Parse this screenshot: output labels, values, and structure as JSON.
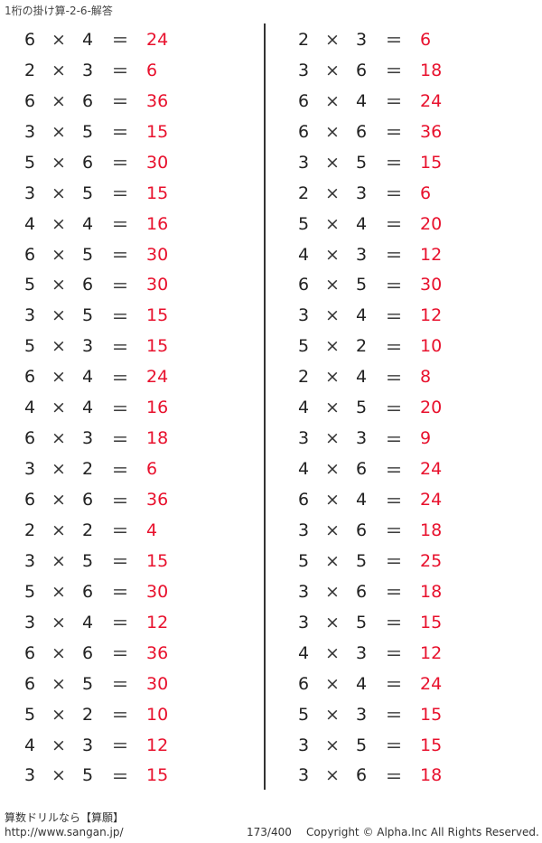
{
  "title": "1桁の掛け算-2-6-解答",
  "operator": "×",
  "equals": "＝",
  "answer_color": "#e8112d",
  "left": [
    [
      "6",
      "4",
      "24"
    ],
    [
      "2",
      "3",
      "6"
    ],
    [
      "6",
      "6",
      "36"
    ],
    [
      "3",
      "5",
      "15"
    ],
    [
      "5",
      "6",
      "30"
    ],
    [
      "3",
      "5",
      "15"
    ],
    [
      "4",
      "4",
      "16"
    ],
    [
      "6",
      "5",
      "30"
    ],
    [
      "5",
      "6",
      "30"
    ],
    [
      "3",
      "5",
      "15"
    ],
    [
      "5",
      "3",
      "15"
    ],
    [
      "6",
      "4",
      "24"
    ],
    [
      "4",
      "4",
      "16"
    ],
    [
      "6",
      "3",
      "18"
    ],
    [
      "3",
      "2",
      "6"
    ],
    [
      "6",
      "6",
      "36"
    ],
    [
      "2",
      "2",
      "4"
    ],
    [
      "3",
      "5",
      "15"
    ],
    [
      "5",
      "6",
      "30"
    ],
    [
      "3",
      "4",
      "12"
    ],
    [
      "6",
      "6",
      "36"
    ],
    [
      "6",
      "5",
      "30"
    ],
    [
      "5",
      "2",
      "10"
    ],
    [
      "4",
      "3",
      "12"
    ],
    [
      "3",
      "5",
      "15"
    ]
  ],
  "right": [
    [
      "2",
      "3",
      "6"
    ],
    [
      "3",
      "6",
      "18"
    ],
    [
      "6",
      "4",
      "24"
    ],
    [
      "6",
      "6",
      "36"
    ],
    [
      "3",
      "5",
      "15"
    ],
    [
      "2",
      "3",
      "6"
    ],
    [
      "5",
      "4",
      "20"
    ],
    [
      "4",
      "3",
      "12"
    ],
    [
      "6",
      "5",
      "30"
    ],
    [
      "3",
      "4",
      "12"
    ],
    [
      "5",
      "2",
      "10"
    ],
    [
      "2",
      "4",
      "8"
    ],
    [
      "4",
      "5",
      "20"
    ],
    [
      "3",
      "3",
      "9"
    ],
    [
      "4",
      "6",
      "24"
    ],
    [
      "6",
      "4",
      "24"
    ],
    [
      "3",
      "6",
      "18"
    ],
    [
      "5",
      "5",
      "25"
    ],
    [
      "3",
      "6",
      "18"
    ],
    [
      "3",
      "5",
      "15"
    ],
    [
      "4",
      "3",
      "12"
    ],
    [
      "6",
      "4",
      "24"
    ],
    [
      "5",
      "3",
      "15"
    ],
    [
      "3",
      "5",
      "15"
    ],
    [
      "3",
      "6",
      "18"
    ]
  ],
  "footer": {
    "brand": "算数ドリルなら【算願】",
    "url": "http://www.sangan.jp/",
    "page": "173/400",
    "copyright": "Copyright © Alpha.Inc All Rights Reserved."
  }
}
